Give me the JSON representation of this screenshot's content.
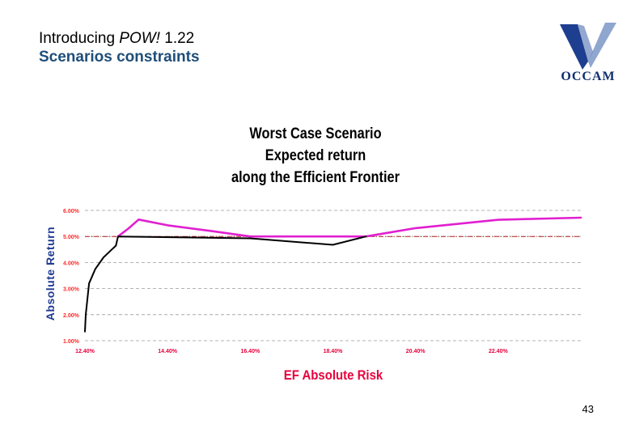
{
  "header": {
    "title_prefix": "Introducing ",
    "title_em": "POW!",
    "title_suffix": " 1.22",
    "subtitle": "Scenarios constraints"
  },
  "logo": {
    "text": "OCCAM",
    "colors": [
      "#1e3f8f",
      "#8fa6cf"
    ]
  },
  "page_number": "43",
  "chart_data": {
    "type": "line",
    "title_lines": [
      "Worst Case Scenario",
      "Expected return",
      "along the Efficient Frontier"
    ],
    "xlabel": "EF Absolute Risk",
    "ylabel": "Absolute Return",
    "xlim": [
      12.4,
      24.4
    ],
    "ylim": [
      1.0,
      6.0
    ],
    "x_ticks": [
      12.4,
      14.4,
      16.4,
      18.4,
      20.4,
      22.4
    ],
    "x_tick_labels": [
      "12.40%",
      "14.40%",
      "16.40%",
      "18.40%",
      "20.40%",
      "22.40%"
    ],
    "y_ticks": [
      1,
      2,
      3,
      4,
      5,
      6
    ],
    "y_tick_labels": [
      "1.00%",
      "2.00%",
      "3.00%",
      "4.00%",
      "5.00%",
      "6.00%"
    ],
    "grid": "horizontal-dashed",
    "reference_line": {
      "y": 5.0,
      "color": "#b02020"
    },
    "series": [
      {
        "color": "#000000",
        "x": [
          12.4,
          12.42,
          12.5,
          12.65,
          12.85,
          13.05,
          13.15,
          13.2,
          16.4,
          18.4,
          19.2
        ],
        "y": [
          1.35,
          2.0,
          3.2,
          3.75,
          4.2,
          4.5,
          4.65,
          5.0,
          4.93,
          4.68,
          5.0
        ]
      },
      {
        "color": "#e020d0",
        "x": [
          13.2,
          13.45,
          13.7,
          14.4,
          15.4,
          16.4,
          18.4,
          19.2,
          20.4,
          22.4,
          24.4
        ],
        "y": [
          5.0,
          5.3,
          5.65,
          5.43,
          5.22,
          5.0,
          5.0,
          5.0,
          5.32,
          5.64,
          5.72
        ]
      }
    ],
    "colors": {
      "axis_text": "#ff2a2a",
      "x_tick_text": "#e8003c",
      "grid": "#9a9a9a"
    }
  }
}
